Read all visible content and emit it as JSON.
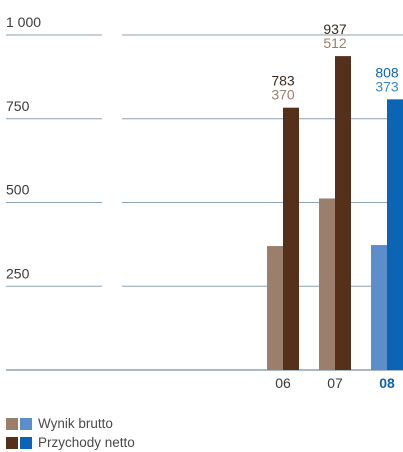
{
  "chart_data": {
    "type": "bar",
    "categories": [
      "06",
      "07",
      "08"
    ],
    "highlight_category": "08",
    "yticks": [
      {
        "value": 250,
        "label": "250"
      },
      {
        "value": 500,
        "label": "500"
      },
      {
        "value": 750,
        "label": "750"
      },
      {
        "value": 1000,
        "label": "1 000"
      }
    ],
    "ylim": [
      0,
      1000
    ],
    "series": [
      {
        "name": "Wynik brutto",
        "values": [
          370,
          512,
          373
        ],
        "colors": [
          "#9b7f6c",
          "#9b7f6c",
          "#5b8ecb"
        ],
        "legend_colors": [
          "#9b7f6c",
          "#5b8ecb"
        ]
      },
      {
        "name": "Przychody netto",
        "values": [
          783,
          937,
          808
        ],
        "colors": [
          "#55301a",
          "#55301a",
          "#0b64b4"
        ],
        "legend_colors": [
          "#55301a",
          "#0b64b4"
        ]
      }
    ],
    "data_labels": [
      {
        "category": "06",
        "top": "783",
        "bottom": "370"
      },
      {
        "category": "07",
        "top": "937",
        "bottom": "512"
      },
      {
        "category": "08",
        "top": "808",
        "bottom": "373"
      }
    ],
    "label_colors": {
      "default_top": "#3a2a20",
      "default_bottom": "#9b7f6c",
      "highlight_top": "#0b64b4",
      "highlight_bottom": "#3f86c8",
      "axis_text": "#3a3a3a",
      "highlight_axis_text": "#0b64b4",
      "grid": "#8fa2b2",
      "baseline": "#8fa2b2"
    }
  }
}
